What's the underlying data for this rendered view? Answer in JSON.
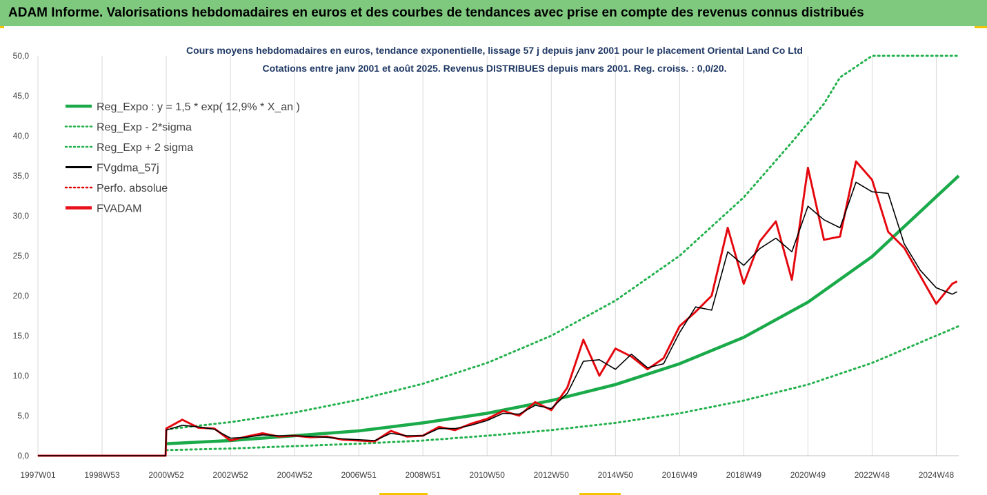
{
  "banner": {
    "title": "ADAM Informe. Valorisations hebdomadaires en euros et des courbes de tendances avec prise en compte des revenus connus distribués"
  },
  "colors": {
    "banner_bg": "#7fc97f",
    "reg_expo": "#1aaa4a",
    "band": "#22b14c",
    "gdma": "#000000",
    "perfo": "#e00000",
    "fvadam": "#e8101a",
    "grid": "#d9d9d9",
    "corner_marks": "#f5c400"
  },
  "chart_data": {
    "type": "line",
    "title": "Cours moyens hebdomadaires en euros, tendance exponentielle, lissage 57 j depuis janv 2001  pour le placement Oriental Land Co Ltd",
    "subtitle": "Cotations entre janv 2001 et août 2025.  Revenus DISTRIBUES depuis mars 2001. Reg. croiss. : 0,0/20.",
    "xlabel": "",
    "ylabel": "",
    "ylim": [
      0,
      50
    ],
    "y_ticks": [
      "0,0",
      "5,0",
      "10,0",
      "15,0",
      "20,0",
      "25,0",
      "30,0",
      "35,0",
      "40,0",
      "45,0",
      "50,0"
    ],
    "x_ticks": [
      {
        "label": "1997W01",
        "year": 1997.0
      },
      {
        "label": "1998W53",
        "year": 1999.0
      },
      {
        "label": "2000W52",
        "year": 2001.0
      },
      {
        "label": "2002W52",
        "year": 2003.0
      },
      {
        "label": "2004W52",
        "year": 2005.0
      },
      {
        "label": "2006W51",
        "year": 2007.0
      },
      {
        "label": "2008W51",
        "year": 2009.0
      },
      {
        "label": "2010W50",
        "year": 2011.0
      },
      {
        "label": "2012W50",
        "year": 2013.0
      },
      {
        "label": "2014W50",
        "year": 2015.0
      },
      {
        "label": "2016W49",
        "year": 2017.0
      },
      {
        "label": "2018W49",
        "year": 2019.0
      },
      {
        "label": "2020W49",
        "year": 2021.0
      },
      {
        "label": "2022W48",
        "year": 2023.0
      },
      {
        "label": "2024W48",
        "year": 2025.0
      }
    ],
    "xlim": [
      1997.0,
      2025.7
    ],
    "grid": "vertical",
    "legend_position": "top-left",
    "legend": [
      {
        "label": "Reg_Expo : y = 1,5 * exp( 12,9% *  X_an )",
        "style": "solid-thick",
        "color": "#1aaa4a"
      },
      {
        "label": "Reg_Exp - 2*sigma",
        "style": "dotted",
        "color": "#22b14c"
      },
      {
        "label": "Reg_Exp + 2 sigma",
        "style": "dotted",
        "color": "#22b14c"
      },
      {
        "label": "FVgdma_57j",
        "style": "solid",
        "color": "#000000"
      },
      {
        "label": "Perfo. absolue",
        "style": "dotted",
        "color": "#e00000"
      },
      {
        "label": "FVADAM",
        "style": "solid-thick",
        "color": "#e8101a"
      }
    ],
    "series": [
      {
        "name": "Reg_Expo : y = 1,5 * exp( 12,9% *  X_an )",
        "x": [
          2001.0,
          2003.0,
          2005.0,
          2007.0,
          2009.0,
          2011.0,
          2013.0,
          2015.0,
          2017.0,
          2019.0,
          2021.0,
          2023.0,
          2025.7
        ],
        "values": [
          1.5,
          1.9,
          2.5,
          3.1,
          4.1,
          5.3,
          6.9,
          8.9,
          11.5,
          14.8,
          19.2,
          24.9,
          35.0
        ]
      },
      {
        "name": "Reg_Exp - 2*sigma",
        "x": [
          2001.0,
          2003.0,
          2005.0,
          2007.0,
          2009.0,
          2011.0,
          2013.0,
          2015.0,
          2017.0,
          2019.0,
          2021.0,
          2023.0,
          2025.7
        ],
        "values": [
          0.7,
          0.9,
          1.2,
          1.5,
          1.9,
          2.5,
          3.2,
          4.1,
          5.3,
          6.9,
          8.9,
          11.6,
          16.2
        ]
      },
      {
        "name": "Reg_Exp + 2 sigma",
        "x": [
          2001.0,
          2003.0,
          2005.0,
          2007.0,
          2009.0,
          2011.0,
          2013.0,
          2015.0,
          2017.0,
          2019.0,
          2020.5,
          2021.5,
          2022.0,
          2023.0,
          2025.7
        ],
        "values": [
          3.3,
          4.2,
          5.4,
          7.0,
          9.0,
          11.6,
          15.0,
          19.4,
          25.0,
          32.3,
          39.2,
          44.0,
          47.3,
          50.0,
          50.0
        ]
      },
      {
        "name": "FVgdma_57j",
        "x": [
          1997.0,
          2000.98,
          2001.0,
          2001.5,
          2002.0,
          2002.5,
          2003.0,
          2003.5,
          2004.0,
          2004.5,
          2005.0,
          2005.5,
          2006.0,
          2006.5,
          2007.0,
          2007.5,
          2008.0,
          2008.5,
          2009.0,
          2009.5,
          2010.0,
          2010.5,
          2011.0,
          2011.5,
          2012.0,
          2012.5,
          2013.0,
          2013.5,
          2014.0,
          2014.5,
          2015.0,
          2015.5,
          2016.0,
          2016.5,
          2017.0,
          2017.5,
          2018.0,
          2018.5,
          2019.0,
          2019.5,
          2020.0,
          2020.5,
          2021.0,
          2021.5,
          2022.0,
          2022.5,
          2023.0,
          2023.5,
          2024.0,
          2024.5,
          2025.0,
          2025.5,
          2025.65
        ],
        "values": [
          0.0,
          0.0,
          3.2,
          3.8,
          3.6,
          3.3,
          2.2,
          2.3,
          2.6,
          2.5,
          2.5,
          2.4,
          2.3,
          2.1,
          2.0,
          1.9,
          2.8,
          2.5,
          2.5,
          3.4,
          3.4,
          3.8,
          4.4,
          5.3,
          5.2,
          6.3,
          5.9,
          7.8,
          11.8,
          12.0,
          10.8,
          12.7,
          11.0,
          11.5,
          15.4,
          18.6,
          18.2,
          25.5,
          23.8,
          25.9,
          27.2,
          25.5,
          31.2,
          29.5,
          28.5,
          34.2,
          33.0,
          32.8,
          26.5,
          23.2,
          21.0,
          20.2,
          20.5
        ]
      },
      {
        "name": "FVADAM",
        "x": [
          1997.0,
          2000.98,
          2001.0,
          2001.5,
          2002.0,
          2002.5,
          2003.0,
          2003.5,
          2004.0,
          2004.5,
          2005.0,
          2005.5,
          2006.0,
          2006.5,
          2007.0,
          2007.5,
          2008.0,
          2008.5,
          2009.0,
          2009.5,
          2010.0,
          2010.5,
          2011.0,
          2011.5,
          2012.0,
          2012.5,
          2013.0,
          2013.5,
          2014.0,
          2014.5,
          2015.0,
          2015.5,
          2016.0,
          2016.5,
          2017.0,
          2017.5,
          2018.0,
          2018.5,
          2019.0,
          2019.5,
          2020.0,
          2020.5,
          2021.0,
          2021.5,
          2022.0,
          2022.5,
          2023.0,
          2023.5,
          2024.0,
          2024.5,
          2025.0,
          2025.5,
          2025.65
        ],
        "values": [
          0.0,
          0.0,
          3.4,
          4.5,
          3.5,
          3.4,
          1.9,
          2.4,
          2.8,
          2.4,
          2.5,
          2.3,
          2.4,
          2.0,
          1.9,
          1.8,
          3.1,
          2.4,
          2.5,
          3.6,
          3.2,
          4.0,
          4.6,
          5.6,
          5.0,
          6.7,
          5.7,
          8.5,
          14.5,
          10.0,
          13.4,
          12.4,
          10.8,
          12.2,
          16.2,
          18.0,
          20.0,
          28.5,
          21.5,
          26.8,
          29.3,
          22.0,
          36.0,
          27.0,
          27.4,
          36.8,
          34.5,
          28.0,
          26.0,
          22.5,
          19.0,
          21.5,
          21.8
        ]
      },
      {
        "name": "Perfo. absolue",
        "x": [
          1997.0,
          2000.98,
          2001.0,
          2001.5,
          2002.0,
          2002.5,
          2003.0,
          2003.5,
          2004.0,
          2004.5,
          2005.0,
          2005.5,
          2006.0,
          2006.5,
          2007.0,
          2007.5,
          2008.0,
          2008.5,
          2009.0,
          2009.5,
          2010.0,
          2010.5,
          2011.0,
          2011.5,
          2012.0,
          2012.5,
          2013.0,
          2013.5,
          2014.0,
          2014.5,
          2015.0,
          2015.5,
          2016.0,
          2016.5,
          2017.0,
          2017.5,
          2018.0,
          2018.5,
          2019.0,
          2019.5,
          2020.0,
          2020.5,
          2021.0,
          2021.5,
          2022.0,
          2022.5,
          2023.0,
          2023.5,
          2024.0,
          2024.5,
          2025.0,
          2025.5,
          2025.65
        ],
        "values": [
          0.0,
          0.0,
          3.4,
          4.5,
          3.5,
          3.4,
          1.9,
          2.4,
          2.8,
          2.4,
          2.5,
          2.3,
          2.4,
          2.0,
          1.9,
          1.8,
          3.1,
          2.4,
          2.5,
          3.6,
          3.2,
          4.0,
          4.6,
          5.6,
          5.0,
          6.7,
          5.7,
          8.5,
          14.5,
          10.0,
          13.4,
          12.4,
          10.8,
          12.2,
          16.2,
          18.0,
          20.0,
          28.5,
          21.5,
          26.8,
          29.3,
          22.0,
          36.0,
          27.0,
          27.4,
          36.8,
          34.5,
          28.0,
          26.0,
          22.5,
          19.0,
          21.5,
          21.8
        ]
      }
    ]
  }
}
